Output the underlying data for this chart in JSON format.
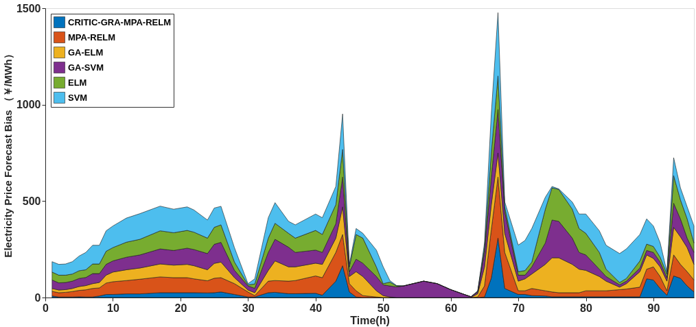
{
  "chart_data": {
    "type": "area",
    "stacked": true,
    "xlabel": "Time(h)",
    "ylabel": "Electricity Price Forecast Bias （￥/MWh）",
    "xlim": [
      0,
      96
    ],
    "xticks": [
      0,
      10,
      20,
      30,
      40,
      50,
      60,
      70,
      80,
      90
    ],
    "ylim": [
      0,
      1500
    ],
    "yticks": [
      0,
      500,
      1000,
      1500
    ],
    "grid": false,
    "legend": "top left",
    "x": [
      1,
      2,
      3,
      4,
      5,
      6,
      7,
      8,
      9,
      10,
      12,
      14,
      17,
      19,
      21,
      22,
      24,
      25,
      26,
      28,
      30,
      31,
      33,
      34,
      36,
      37,
      40,
      41,
      43,
      44,
      45,
      46,
      47,
      49,
      50,
      51,
      52,
      53,
      56,
      58,
      60,
      62,
      63,
      64,
      65,
      66,
      67,
      68,
      70,
      71,
      72,
      74,
      75,
      76,
      78,
      79,
      80,
      82,
      83,
      85,
      86,
      88,
      89,
      90,
      91,
      92,
      93,
      94,
      95,
      96
    ],
    "series": [
      {
        "name": "CRITIC-GRA-MPA-RELM",
        "color": "#0072bd",
        "values": [
          8,
          3,
          3,
          3,
          4,
          3,
          3,
          8,
          16,
          16,
          19,
          19,
          25,
          25,
          25,
          25,
          24,
          25,
          29,
          16,
          3,
          3,
          25,
          27,
          20,
          20,
          22,
          12,
          85,
          165,
          29,
          3,
          0,
          0,
          0,
          0,
          0,
          0,
          0,
          0,
          0,
          0,
          0,
          0,
          3,
          100,
          308,
          47,
          16,
          16,
          10,
          8,
          4,
          4,
          4,
          4,
          4,
          4,
          4,
          4,
          4,
          4,
          97,
          91,
          47,
          12,
          112,
          100,
          60,
          29
        ]
      },
      {
        "name": "MPA-RELM",
        "color": "#d95319",
        "values": [
          24,
          22,
          24,
          28,
          33,
          37,
          44,
          42,
          59,
          66,
          69,
          76,
          82,
          78,
          78,
          72,
          63,
          75,
          74,
          56,
          26,
          7,
          60,
          61,
          65,
          68,
          90,
          91,
          149,
          162,
          43,
          32,
          10,
          3,
          0,
          0,
          0,
          0,
          0,
          0,
          0,
          0,
          0,
          3,
          57,
          250,
          317,
          187,
          19,
          19,
          37,
          27,
          25,
          21,
          21,
          21,
          31,
          31,
          31,
          37,
          40,
          50,
          50,
          68,
          62,
          23,
          109,
          72,
          74,
          62
        ]
      },
      {
        "name": "GA-ELM",
        "color": "#edb120",
        "values": [
          15,
          14,
          14,
          16,
          20,
          22,
          25,
          28,
          41,
          50,
          56,
          58,
          67,
          65,
          69,
          68,
          57,
          77,
          81,
          31,
          10,
          15,
          56,
          102,
          74,
          71,
          66,
          69,
          74,
          143,
          37,
          99,
          99,
          32,
          10,
          3,
          0,
          0,
          0,
          0,
          0,
          0,
          0,
          17,
          99,
          130,
          125,
          99,
          50,
          62,
          75,
          137,
          177,
          181,
          147,
          122,
          106,
          74,
          50,
          13,
          28,
          80,
          74,
          44,
          50,
          50,
          143,
          143,
          125,
          81
        ]
      },
      {
        "name": "GA-SVM",
        "color": "#7e2f8e",
        "values": [
          44,
          37,
          37,
          38,
          42,
          42,
          52,
          46,
          56,
          58,
          65,
          68,
          78,
          76,
          84,
          84,
          84,
          99,
          102,
          38,
          21,
          23,
          93,
          112,
          102,
          75,
          68,
          62,
          75,
          155,
          25,
          65,
          69,
          74,
          56,
          57,
          55,
          60,
          85,
          72,
          41,
          16,
          4,
          9,
          75,
          140,
          225,
          112,
          31,
          19,
          37,
          111,
          196,
          189,
          136,
          87,
          80,
          38,
          24,
          12,
          13,
          19,
          23,
          31,
          25,
          18,
          125,
          93,
          49,
          62
        ]
      },
      {
        "name": "ELM",
        "color": "#77ac30",
        "values": [
          41,
          40,
          38,
          37,
          40,
          40,
          50,
          50,
          68,
          69,
          78,
          81,
          94,
          92,
          92,
          90,
          80,
          88,
          91,
          43,
          6,
          22,
          74,
          83,
          72,
          74,
          102,
          93,
          99,
          143,
          25,
          128,
          130,
          50,
          6,
          20,
          5,
          0,
          0,
          0,
          0,
          0,
          0,
          3,
          25,
          130,
          174,
          25,
          18,
          24,
          25,
          175,
          167,
          165,
          150,
          124,
          112,
          87,
          38,
          12,
          14,
          37,
          33,
          31,
          25,
          19,
          143,
          99,
          100,
          49
        ]
      },
      {
        "name": "SVM",
        "color": "#4dbeee",
        "values": [
          54,
          56,
          58,
          64,
          76,
          90,
          97,
          97,
          106,
          112,
          125,
          133,
          128,
          122,
          122,
          115,
          94,
          100,
          96,
          74,
          6,
          27,
          106,
          107,
          62,
          69,
          85,
          87,
          94,
          184,
          13,
          31,
          25,
          87,
          88,
          8,
          2,
          0,
          0,
          0,
          0,
          0,
          0,
          3,
          25,
          200,
          328,
          26,
          138,
          156,
          174,
          62,
          7,
          3,
          37,
          75,
          100,
          112,
          124,
          150,
          153,
          137,
          131,
          106,
          75,
          12,
          93,
          62,
          62,
          88
        ]
      }
    ]
  }
}
